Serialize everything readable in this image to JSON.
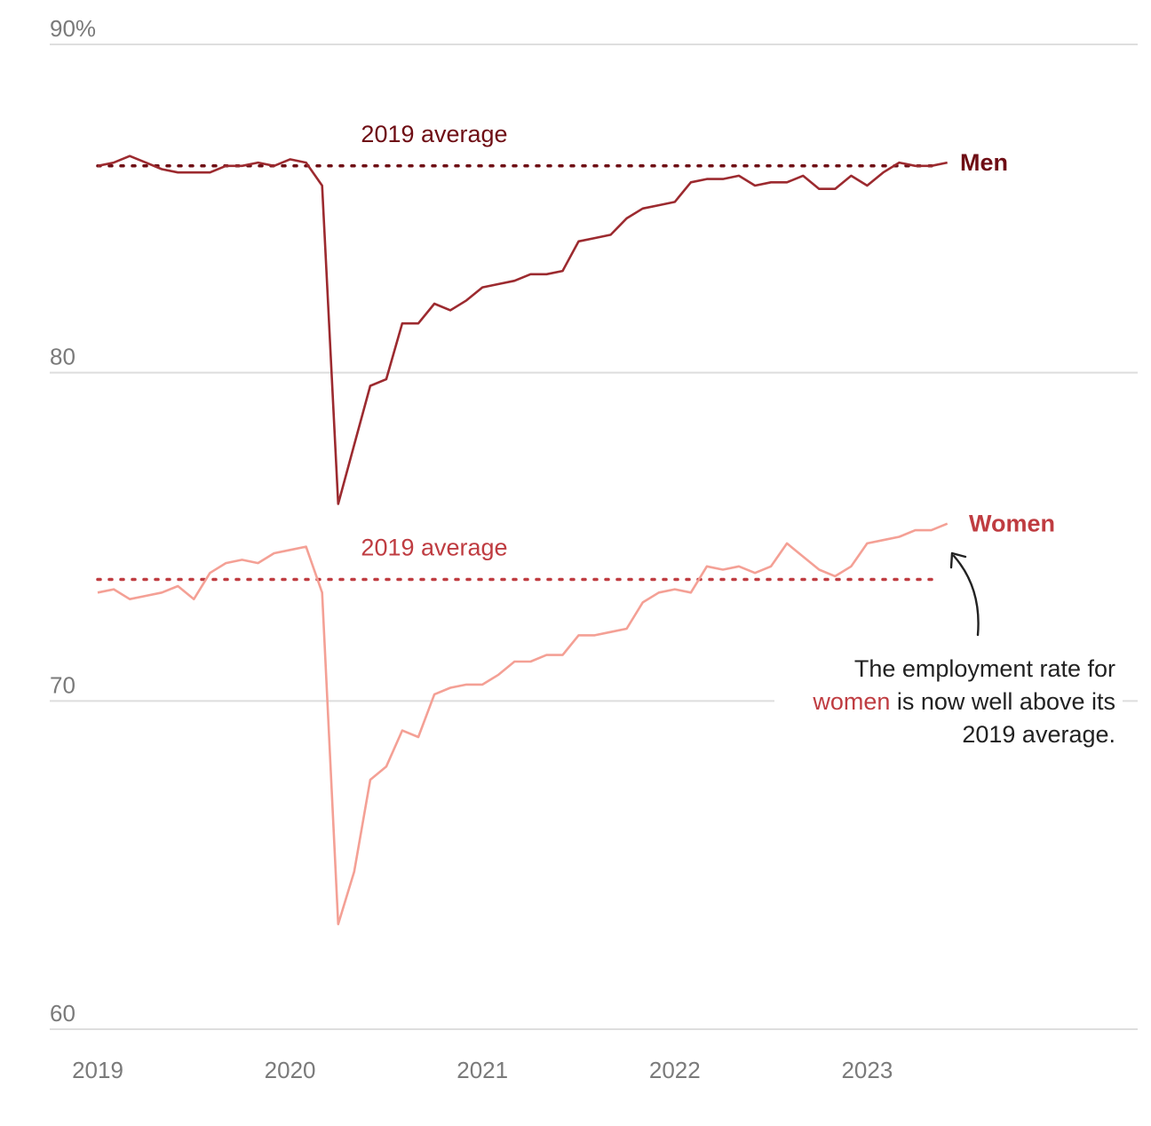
{
  "chart_data": {
    "type": "line",
    "y_unit_suffix": "%",
    "ylim": [
      60,
      90
    ],
    "y_ticks": [
      {
        "value": 90,
        "label": "90%"
      },
      {
        "value": 80,
        "label": "80"
      },
      {
        "value": 70,
        "label": "70"
      },
      {
        "value": 60,
        "label": "60"
      }
    ],
    "x_ticks": [
      "2019",
      "2020",
      "2021",
      "2022",
      "2023"
    ],
    "x_start": "2019-01",
    "grid": true,
    "series": [
      {
        "name": "Men",
        "color": "#9c2a2f",
        "label_color": "#6e0d14",
        "average": 86.3,
        "average_label": "2019 average",
        "average_color": "#6e0d14",
        "values": [
          86.3,
          86.4,
          86.6,
          86.4,
          86.2,
          86.1,
          86.1,
          86.1,
          86.3,
          86.3,
          86.4,
          86.3,
          86.5,
          86.4,
          85.7,
          76.0,
          77.8,
          79.6,
          79.8,
          81.5,
          81.5,
          82.1,
          81.9,
          82.2,
          82.6,
          82.7,
          82.8,
          83.0,
          83.0,
          83.1,
          84.0,
          84.1,
          84.2,
          84.7,
          85.0,
          85.1,
          85.2,
          85.8,
          85.9,
          85.9,
          86.0,
          85.7,
          85.8,
          85.8,
          86.0,
          85.6,
          85.6,
          86.0,
          85.7,
          86.1,
          86.4,
          86.3,
          86.3,
          86.4
        ]
      },
      {
        "name": "Women",
        "color": "#f4a095",
        "label_color": "#bf3c41",
        "average": 73.7,
        "average_label": "2019 average",
        "average_color": "#bf3c41",
        "values": [
          73.3,
          73.4,
          73.1,
          73.2,
          73.3,
          73.5,
          73.1,
          73.9,
          74.2,
          74.3,
          74.2,
          74.5,
          74.6,
          74.7,
          73.3,
          63.2,
          64.8,
          67.6,
          68.0,
          69.1,
          68.9,
          70.2,
          70.4,
          70.5,
          70.5,
          70.8,
          71.2,
          71.2,
          71.4,
          71.4,
          72.0,
          72.0,
          72.1,
          72.2,
          73.0,
          73.3,
          73.4,
          73.3,
          74.1,
          74.0,
          74.1,
          73.9,
          74.1,
          74.8,
          74.4,
          74.0,
          73.8,
          74.1,
          74.8,
          74.9,
          75.0,
          75.2,
          75.2,
          75.4
        ]
      }
    ],
    "annotation": {
      "lines": [
        [
          {
            "text": "The employment rate for",
            "color": "#222222"
          }
        ],
        [
          {
            "text": "women",
            "color": "#bf3c41"
          },
          {
            "text": " is now well above its",
            "color": "#222222"
          }
        ],
        [
          {
            "text": "2019 average.",
            "color": "#222222"
          }
        ]
      ]
    }
  }
}
